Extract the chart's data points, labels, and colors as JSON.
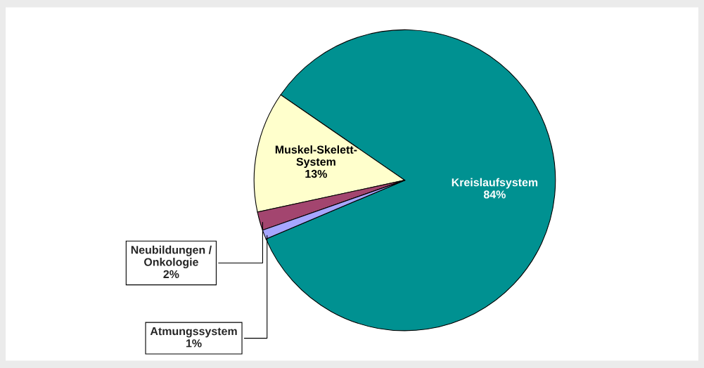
{
  "chart_data": {
    "type": "pie",
    "categories": [
      "Kreislaufsystem",
      "Muskel-Skelett-\nSystem",
      "Neubildungen /\nOnkologie",
      "Atmungssystem"
    ],
    "values": [
      84,
      13,
      2,
      1
    ],
    "value_labels": [
      "84%",
      "13%",
      "2%",
      "1%"
    ],
    "colors": [
      "#009191",
      "#ffffcc",
      "#a3456f",
      "#a6a6ff"
    ]
  }
}
